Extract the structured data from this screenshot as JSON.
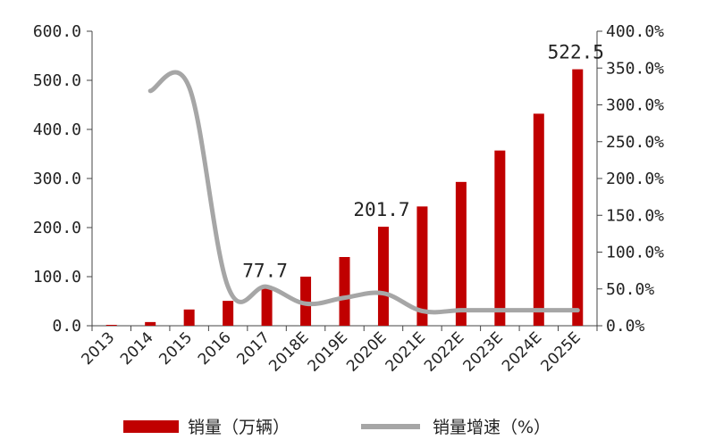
{
  "chart_data": {
    "type": "bar+line",
    "categories": [
      "2013",
      "2014",
      "2015",
      "2016",
      "2017",
      "2018E",
      "2019E",
      "2020E",
      "2021E",
      "2022E",
      "2023E",
      "2024E",
      "2025E"
    ],
    "series": [
      {
        "name": "销量（万辆）",
        "type": "bar",
        "axis": "left",
        "color": "#C00000",
        "values": [
          1.8,
          7.5,
          33.1,
          50.7,
          77.7,
          100.0,
          140.0,
          201.7,
          243.0,
          293.0,
          357.0,
          432.0,
          522.5
        ]
      },
      {
        "name": "销量增速（%）",
        "type": "line",
        "axis": "right",
        "color": "#A6A6A6",
        "values": [
          null,
          319.0,
          324.0,
          53.0,
          53.0,
          30.0,
          38.0,
          44.0,
          20.0,
          21.0,
          21.0,
          21.0,
          21.0
        ]
      }
    ],
    "data_labels": [
      {
        "category": "2017",
        "text": "77.7"
      },
      {
        "category": "2020E",
        "text": "201.7"
      },
      {
        "category": "2025E",
        "text": "522.5"
      }
    ],
    "left_axis": {
      "min": 0,
      "max": 600,
      "step": 100,
      "tick_labels": [
        "0.0",
        "100.0",
        "200.0",
        "300.0",
        "400.0",
        "500.0",
        "600.0"
      ]
    },
    "right_axis": {
      "min": 0,
      "max": 400,
      "step": 50,
      "tick_labels": [
        "0.0%",
        "50.0%",
        "100.0%",
        "150.0%",
        "200.0%",
        "250.0%",
        "300.0%",
        "350.0%",
        "400.0%"
      ]
    },
    "grid": false,
    "legend_position": "bottom"
  }
}
